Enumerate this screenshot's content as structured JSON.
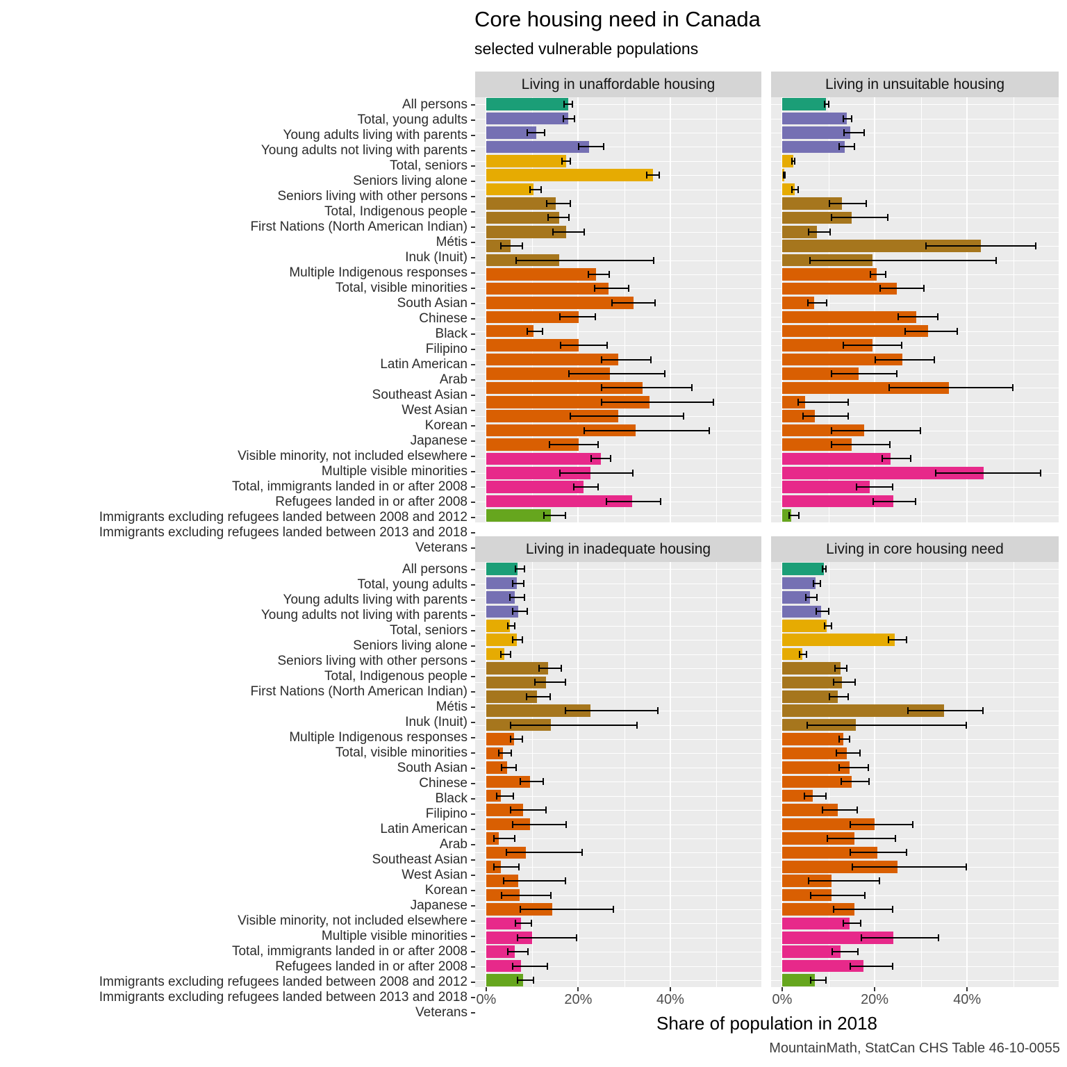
{
  "chart_data": {
    "type": "bar",
    "orientation": "horizontal",
    "title": "Core housing need in Canada",
    "subtitle": "selected vulnerable populations",
    "caption": "MountainMath, StatCan CHS Table 46-10-0055",
    "xlabel": "Share of population in 2018",
    "x_tick_labels": [
      "0%",
      "20%",
      "40%"
    ],
    "x_tick_values": [
      0,
      20,
      40
    ],
    "x_minor_values": [
      10,
      30,
      50
    ],
    "x_domain": [
      -2.4,
      59.8
    ],
    "grid": "white-on-gray",
    "legend": "none",
    "error_bars": true,
    "panel_background": "#ebebeb",
    "strip_background": "#d5d5d5",
    "group_colors": {
      "all_persons": "#1B9E77",
      "young_adults": "#7570B3",
      "seniors": "#E6AB02",
      "indigenous": "#A6761D",
      "visible_minorities": "#D95F02",
      "immigrants": "#E7298A",
      "veterans": "#66A61E"
    },
    "categories": [
      {
        "label": "All persons",
        "group": "all_persons"
      },
      {
        "label": "Total, young adults",
        "group": "young_adults"
      },
      {
        "label": "Young adults living with parents",
        "group": "young_adults"
      },
      {
        "label": "Young adults not living with parents",
        "group": "young_adults"
      },
      {
        "label": "Total, seniors",
        "group": "seniors"
      },
      {
        "label": "Seniors living alone",
        "group": "seniors"
      },
      {
        "label": "Seniors living with other persons",
        "group": "seniors"
      },
      {
        "label": "Total, Indigenous people",
        "group": "indigenous"
      },
      {
        "label": "First Nations (North American Indian)",
        "group": "indigenous"
      },
      {
        "label": "Métis",
        "group": "indigenous"
      },
      {
        "label": "Inuk (Inuit)",
        "group": "indigenous"
      },
      {
        "label": "Multiple Indigenous responses",
        "group": "indigenous"
      },
      {
        "label": "Total, visible minorities",
        "group": "visible_minorities"
      },
      {
        "label": "South Asian",
        "group": "visible_minorities"
      },
      {
        "label": "Chinese",
        "group": "visible_minorities"
      },
      {
        "label": "Black",
        "group": "visible_minorities"
      },
      {
        "label": "Filipino",
        "group": "visible_minorities"
      },
      {
        "label": "Latin American",
        "group": "visible_minorities"
      },
      {
        "label": "Arab",
        "group": "visible_minorities"
      },
      {
        "label": "Southeast Asian",
        "group": "visible_minorities"
      },
      {
        "label": "West Asian",
        "group": "visible_minorities"
      },
      {
        "label": "Korean",
        "group": "visible_minorities"
      },
      {
        "label": "Japanese",
        "group": "visible_minorities"
      },
      {
        "label": "Visible minority, not included elsewhere",
        "group": "visible_minorities"
      },
      {
        "label": "Multiple visible minorities",
        "group": "visible_minorities"
      },
      {
        "label": "Total, immigrants landed in or after 2008",
        "group": "immigrants"
      },
      {
        "label": "Refugees landed in or after 2008",
        "group": "immigrants"
      },
      {
        "label": "Immigrants excluding refugees landed between 2008 and 2012",
        "group": "immigrants"
      },
      {
        "label": "Immigrants excluding refugees landed between 2013 and 2018",
        "group": "immigrants"
      },
      {
        "label": "Veterans",
        "group": "veterans"
      }
    ],
    "facets": [
      {
        "title": "Living in unaffordable housing",
        "values": [
          17.8,
          17.8,
          10.9,
          22.3,
          17.4,
          36.2,
          10.3,
          15.1,
          15.8,
          17.4,
          5.3,
          15.8,
          23.8,
          26.6,
          32.0,
          20.1,
          10.3,
          20.1,
          28.7,
          26.9,
          34.0,
          35.5,
          28.7,
          32.5,
          20.1,
          24.9,
          22.6,
          21.1,
          31.7,
          14.0
        ],
        "ci_low": [
          16.8,
          16.6,
          8.8,
          19.9,
          16.3,
          34.7,
          9.4,
          13.0,
          13.3,
          14.3,
          3.0,
          6.3,
          22.0,
          23.4,
          27.2,
          15.8,
          8.8,
          16.0,
          24.9,
          17.8,
          24.9,
          24.9,
          18.1,
          21.1,
          13.6,
          22.6,
          15.8,
          18.9,
          26.0,
          12.4
        ],
        "ci_high": [
          18.9,
          19.3,
          12.8,
          25.7,
          18.4,
          37.7,
          12.1,
          18.4,
          18.1,
          21.4,
          8.0,
          36.5,
          26.9,
          31.1,
          36.8,
          23.8,
          12.4,
          26.4,
          35.9,
          38.9,
          44.8,
          49.5,
          43.0,
          48.6,
          24.5,
          27.2,
          32.0,
          24.5,
          38.0,
          17.4
        ]
      },
      {
        "title": "Living in unsuitable housing",
        "values": [
          9.5,
          14.0,
          14.7,
          13.5,
          2.4,
          0.4,
          2.7,
          13.0,
          15.0,
          7.5,
          43.0,
          19.5,
          20.5,
          24.8,
          6.9,
          29.0,
          31.6,
          19.5,
          26.0,
          16.5,
          36.0,
          5.0,
          7.0,
          17.8,
          15.0,
          23.5,
          43.6,
          19.0,
          24.0,
          2.0
        ],
        "ci_low": [
          9.0,
          13.1,
          13.2,
          12.2,
          2.0,
          0.2,
          2.0,
          10.0,
          10.5,
          5.5,
          31.0,
          5.8,
          19.0,
          21.0,
          5.4,
          25.0,
          26.4,
          13.0,
          20.0,
          10.5,
          23.0,
          3.3,
          4.3,
          10.5,
          10.5,
          21.5,
          33.0,
          16.0,
          19.5,
          1.4
        ],
        "ci_high": [
          10.2,
          15.2,
          17.9,
          15.8,
          2.9,
          0.7,
          3.6,
          18.3,
          23.0,
          10.5,
          55.0,
          46.5,
          22.5,
          30.8,
          9.8,
          33.8,
          38.0,
          26.0,
          33.0,
          25.0,
          50.0,
          14.5,
          14.5,
          30.0,
          23.5,
          28.0,
          56.0,
          24.0,
          29.0,
          3.8
        ]
      },
      {
        "title": "Living in inadequate housing",
        "values": [
          6.8,
          6.6,
          6.2,
          7.0,
          5.2,
          6.6,
          4.0,
          13.4,
          13.0,
          11.0,
          22.6,
          14.0,
          6.1,
          3.6,
          4.6,
          9.6,
          3.2,
          8.0,
          9.6,
          2.8,
          8.6,
          3.2,
          7.0,
          7.2,
          14.4,
          7.6,
          10.0,
          6.2,
          7.6,
          8.0
        ],
        "ci_low": [
          6.2,
          5.6,
          5.0,
          5.6,
          4.6,
          5.6,
          3.1,
          11.4,
          10.5,
          8.6,
          17.0,
          5.2,
          5.2,
          2.6,
          3.2,
          7.2,
          2.1,
          5.2,
          5.6,
          1.6,
          4.2,
          1.6,
          3.6,
          3.2,
          7.2,
          6.2,
          6.6,
          4.6,
          5.6,
          6.6
        ],
        "ci_high": [
          8.4,
          8.3,
          8.4,
          9.0,
          6.3,
          8.0,
          5.4,
          16.5,
          17.4,
          14.0,
          37.5,
          33.0,
          8.0,
          5.6,
          6.6,
          12.6,
          6.0,
          13.2,
          17.6,
          6.4,
          21.0,
          7.2,
          17.4,
          14.2,
          27.8,
          10.0,
          19.8,
          9.2,
          13.4,
          10.4
        ]
      },
      {
        "title": "Living in core housing need",
        "values": [
          9.0,
          7.2,
          6.0,
          8.4,
          9.6,
          24.4,
          4.4,
          12.6,
          13.0,
          12.0,
          35.0,
          16.0,
          13.2,
          14.0,
          14.6,
          15.0,
          6.6,
          12.0,
          20.0,
          15.6,
          20.6,
          25.0,
          10.6,
          10.6,
          15.6,
          14.6,
          24.0,
          12.6,
          17.6,
          7.0
        ],
        "ci_low": [
          8.6,
          6.6,
          5.0,
          7.2,
          9.0,
          22.8,
          3.6,
          11.2,
          11.0,
          10.0,
          27.0,
          5.2,
          12.2,
          11.6,
          12.2,
          12.6,
          4.6,
          8.6,
          14.6,
          9.6,
          14.6,
          15.0,
          5.6,
          6.0,
          11.0,
          13.0,
          17.0,
          10.6,
          14.6,
          6.0
        ],
        "ci_high": [
          9.6,
          8.4,
          7.6,
          10.2,
          10.8,
          27.0,
          5.4,
          14.2,
          16.0,
          14.4,
          43.6,
          40.0,
          14.8,
          17.0,
          18.8,
          19.0,
          9.6,
          16.4,
          28.4,
          24.6,
          27.0,
          40.0,
          21.2,
          18.0,
          24.0,
          17.2,
          34.0,
          16.6,
          24.0,
          9.6
        ]
      }
    ]
  }
}
